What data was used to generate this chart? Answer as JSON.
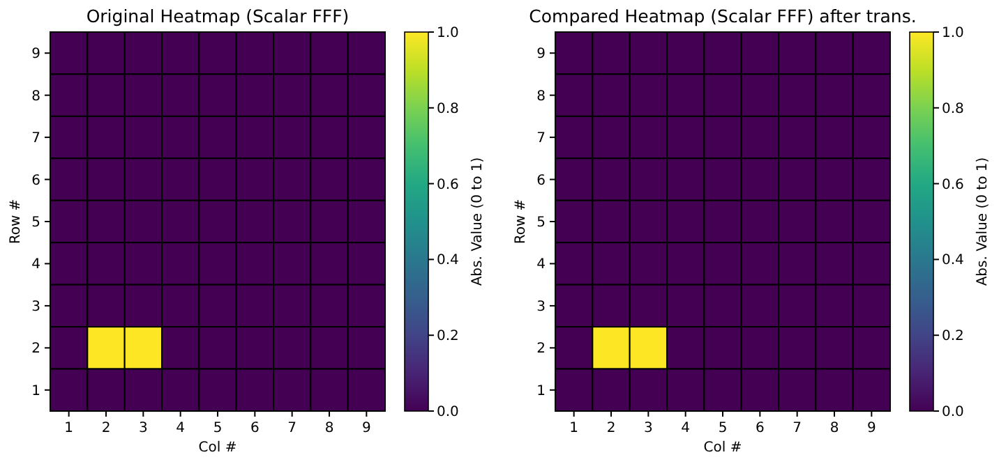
{
  "chart_data": [
    {
      "type": "heatmap",
      "title": "Original Heatmap (Scalar FFF)",
      "xlabel": "Col #",
      "ylabel": "Row #",
      "clabel": "Abs. Value (0 to 1)",
      "categories": [
        "1",
        "2",
        "3",
        "4",
        "5",
        "6",
        "7",
        "8",
        "9"
      ],
      "y_categories": [
        "9",
        "8",
        "7",
        "6",
        "5",
        "4",
        "3",
        "2",
        "1"
      ],
      "cells": [
        [
          0,
          0,
          0,
          0,
          0,
          0,
          0,
          0,
          0
        ],
        [
          0,
          0,
          0,
          0,
          0,
          0,
          0,
          0,
          0
        ],
        [
          0,
          0,
          0,
          0,
          0,
          0,
          0,
          0,
          0
        ],
        [
          0,
          0,
          0,
          0,
          0,
          0,
          0,
          0,
          0
        ],
        [
          0,
          0,
          0,
          0,
          0,
          0,
          0,
          0,
          0
        ],
        [
          0,
          0,
          0,
          0,
          0,
          0,
          0,
          0,
          0
        ],
        [
          0,
          0,
          0,
          0,
          0,
          0,
          0,
          0,
          0
        ],
        [
          0,
          1,
          1,
          0,
          0,
          0,
          0,
          0,
          0
        ],
        [
          0,
          0,
          0,
          0,
          0,
          0,
          0,
          0,
          0
        ]
      ],
      "clim": [
        0,
        1
      ],
      "cticks": [
        {
          "value": 0,
          "label": "0.0"
        },
        {
          "value": 0.2,
          "label": "0.2"
        },
        {
          "value": 0.4,
          "label": "0.4"
        },
        {
          "value": 0.6,
          "label": "0.6"
        },
        {
          "value": 0.8,
          "label": "0.8"
        },
        {
          "value": 1,
          "label": "1.0"
        }
      ]
    },
    {
      "type": "heatmap",
      "title": "Compared Heatmap (Scalar FFF) after trans.",
      "xlabel": "Col #",
      "ylabel": "Row #",
      "clabel": "Abs. Value (0 to 1)",
      "categories": [
        "1",
        "2",
        "3",
        "4",
        "5",
        "6",
        "7",
        "8",
        "9"
      ],
      "y_categories": [
        "9",
        "8",
        "7",
        "6",
        "5",
        "4",
        "3",
        "2",
        "1"
      ],
      "cells": [
        [
          0,
          0,
          0,
          0,
          0,
          0,
          0,
          0,
          0
        ],
        [
          0,
          0,
          0,
          0,
          0,
          0,
          0,
          0,
          0
        ],
        [
          0,
          0,
          0,
          0,
          0,
          0,
          0,
          0,
          0
        ],
        [
          0,
          0,
          0,
          0,
          0,
          0,
          0,
          0,
          0
        ],
        [
          0,
          0,
          0,
          0,
          0,
          0,
          0,
          0,
          0
        ],
        [
          0,
          0,
          0,
          0,
          0,
          0,
          0,
          0,
          0
        ],
        [
          0,
          0,
          0,
          0,
          0,
          0,
          0,
          0,
          0
        ],
        [
          0,
          1,
          1,
          0,
          0,
          0,
          0,
          0,
          0
        ],
        [
          0,
          0,
          0,
          0,
          0,
          0,
          0,
          0,
          0
        ]
      ],
      "clim": [
        0,
        1
      ],
      "cticks": [
        {
          "value": 0,
          "label": "0.0"
        },
        {
          "value": 0.2,
          "label": "0.2"
        },
        {
          "value": 0.4,
          "label": "0.4"
        },
        {
          "value": 0.6,
          "label": "0.6"
        },
        {
          "value": 0.8,
          "label": "0.8"
        },
        {
          "value": 1,
          "label": "1.0"
        }
      ]
    }
  ]
}
